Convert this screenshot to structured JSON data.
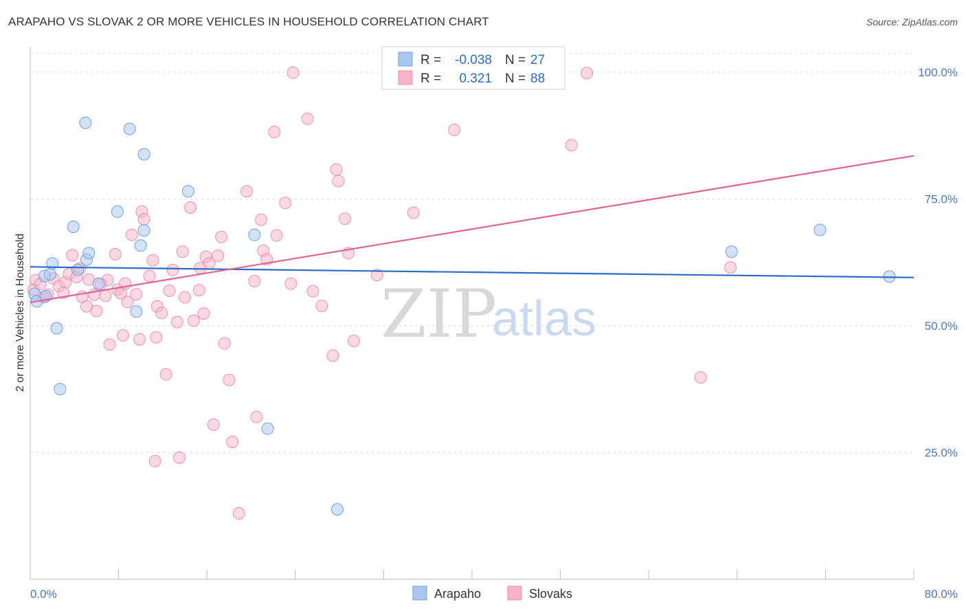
{
  "header": {
    "title": "ARAPAHO VS SLOVAK 2 OR MORE VEHICLES IN HOUSEHOLD CORRELATION CHART",
    "source": "Source: ZipAtlas.com"
  },
  "watermark": {
    "zip": "ZIP",
    "atlas": "atlas"
  },
  "legend": {
    "rows": [
      {
        "r_label": "R =",
        "r_value": "-0.038",
        "n_label": "N =",
        "n_value": "27",
        "color": "#a9c6ef"
      },
      {
        "r_label": "R =",
        "r_value": "0.321",
        "n_label": "N =",
        "n_value": "88",
        "color": "#f6b3c8"
      }
    ]
  },
  "bottom_legend": [
    "Arapaho",
    "Slovaks"
  ],
  "chart_data": {
    "type": "scatter",
    "title": "ARAPAHO VS SLOVAK 2 OR MORE VEHICLES IN HOUSEHOLD CORRELATION CHART",
    "xlabel": "",
    "ylabel": "2 or more Vehicles in Household",
    "xlim": [
      0,
      80
    ],
    "ylim": [
      0,
      105
    ],
    "x_tick_labels": [
      "0.0%",
      "80.0%"
    ],
    "y_ticks": [
      25,
      50,
      75,
      100
    ],
    "y_tick_labels": [
      "25.0%",
      "50.0%",
      "75.0%",
      "100.0%"
    ],
    "grid": true,
    "legend_position": "top-center",
    "series": [
      {
        "name": "Arapaho",
        "color": "#a9c6ef",
        "edge": "#6f9fe0",
        "line_color": "#2a6dc9",
        "trend": {
          "x": [
            0,
            80
          ],
          "y": [
            61.6,
            59.5
          ]
        },
        "points": [
          [
            0.4,
            56.3
          ],
          [
            0.6,
            54.8
          ],
          [
            1.3,
            59.8
          ],
          [
            1.4,
            55.8
          ],
          [
            1.8,
            60.1
          ],
          [
            2.0,
            62.3
          ],
          [
            2.4,
            49.5
          ],
          [
            2.7,
            37.5
          ],
          [
            3.9,
            69.5
          ],
          [
            4.3,
            61.0
          ],
          [
            5.0,
            90.0
          ],
          [
            5.1,
            63.0
          ],
          [
            5.3,
            64.3
          ],
          [
            6.2,
            58.3
          ],
          [
            7.9,
            72.5
          ],
          [
            9.0,
            88.8
          ],
          [
            9.6,
            52.8
          ],
          [
            10.0,
            65.8
          ],
          [
            10.3,
            83.8
          ],
          [
            10.3,
            68.8
          ],
          [
            14.3,
            76.5
          ],
          [
            20.3,
            67.9
          ],
          [
            21.5,
            29.7
          ],
          [
            27.8,
            13.8
          ],
          [
            63.5,
            64.6
          ],
          [
            71.5,
            68.9
          ],
          [
            77.8,
            59.7
          ]
        ]
      },
      {
        "name": "Slovaks",
        "color": "#f6b3c8",
        "edge": "#ef8fae",
        "line_color": "#e26392",
        "trend": {
          "x": [
            0,
            80
          ],
          "y": [
            54.6,
            83.5
          ]
        },
        "points": [
          [
            0.3,
            57.1
          ],
          [
            0.5,
            59.0
          ],
          [
            0.9,
            58.2
          ],
          [
            1.2,
            55.6
          ],
          [
            1.6,
            56.1
          ],
          [
            2.1,
            59.3
          ],
          [
            2.6,
            57.8
          ],
          [
            3.0,
            56.5
          ],
          [
            3.2,
            58.6
          ],
          [
            3.5,
            60.2
          ],
          [
            3.8,
            63.9
          ],
          [
            4.2,
            59.6
          ],
          [
            4.5,
            61.3
          ],
          [
            4.7,
            55.7
          ],
          [
            5.1,
            53.8
          ],
          [
            5.3,
            59.1
          ],
          [
            5.8,
            56.1
          ],
          [
            6.0,
            52.9
          ],
          [
            6.4,
            58.2
          ],
          [
            6.8,
            55.9
          ],
          [
            7.0,
            59.0
          ],
          [
            7.2,
            46.3
          ],
          [
            7.7,
            64.1
          ],
          [
            7.9,
            57.1
          ],
          [
            8.2,
            56.4
          ],
          [
            8.4,
            48.1
          ],
          [
            8.6,
            58.3
          ],
          [
            8.8,
            54.7
          ],
          [
            9.2,
            67.9
          ],
          [
            9.6,
            56.2
          ],
          [
            9.9,
            47.3
          ],
          [
            10.1,
            72.5
          ],
          [
            10.3,
            71.0
          ],
          [
            10.8,
            59.8
          ],
          [
            11.1,
            62.9
          ],
          [
            11.4,
            47.7
          ],
          [
            11.5,
            53.8
          ],
          [
            11.9,
            52.5
          ],
          [
            12.3,
            40.4
          ],
          [
            12.6,
            56.9
          ],
          [
            12.9,
            61.0
          ],
          [
            13.3,
            50.7
          ],
          [
            13.8,
            64.6
          ],
          [
            14.0,
            55.6
          ],
          [
            14.5,
            73.3
          ],
          [
            14.8,
            51.0
          ],
          [
            15.3,
            57.0
          ],
          [
            15.4,
            61.4
          ],
          [
            15.7,
            52.4
          ],
          [
            15.9,
            63.6
          ],
          [
            16.2,
            62.3
          ],
          [
            16.6,
            30.5
          ],
          [
            17.0,
            63.8
          ],
          [
            17.3,
            67.5
          ],
          [
            17.6,
            46.5
          ],
          [
            18.0,
            39.3
          ],
          [
            18.3,
            27.1
          ],
          [
            18.9,
            13.0
          ],
          [
            19.6,
            76.5
          ],
          [
            20.3,
            58.8
          ],
          [
            20.5,
            32.0
          ],
          [
            20.9,
            70.9
          ],
          [
            21.1,
            64.8
          ],
          [
            21.4,
            63.1
          ],
          [
            22.1,
            88.2
          ],
          [
            22.3,
            67.8
          ],
          [
            23.1,
            74.2
          ],
          [
            23.6,
            58.3
          ],
          [
            23.8,
            99.9
          ],
          [
            25.1,
            90.8
          ],
          [
            25.6,
            56.8
          ],
          [
            26.4,
            53.9
          ],
          [
            27.4,
            44.1
          ],
          [
            27.7,
            80.8
          ],
          [
            27.9,
            78.5
          ],
          [
            28.5,
            71.1
          ],
          [
            28.8,
            64.3
          ],
          [
            29.3,
            47.0
          ],
          [
            31.4,
            60.0
          ],
          [
            34.7,
            72.3
          ],
          [
            37.8,
            99.9
          ],
          [
            38.4,
            88.6
          ],
          [
            49.0,
            85.6
          ],
          [
            50.4,
            99.8
          ],
          [
            60.7,
            39.8
          ],
          [
            63.4,
            61.5
          ],
          [
            11.3,
            23.3
          ],
          [
            13.5,
            24.0
          ]
        ]
      }
    ]
  }
}
